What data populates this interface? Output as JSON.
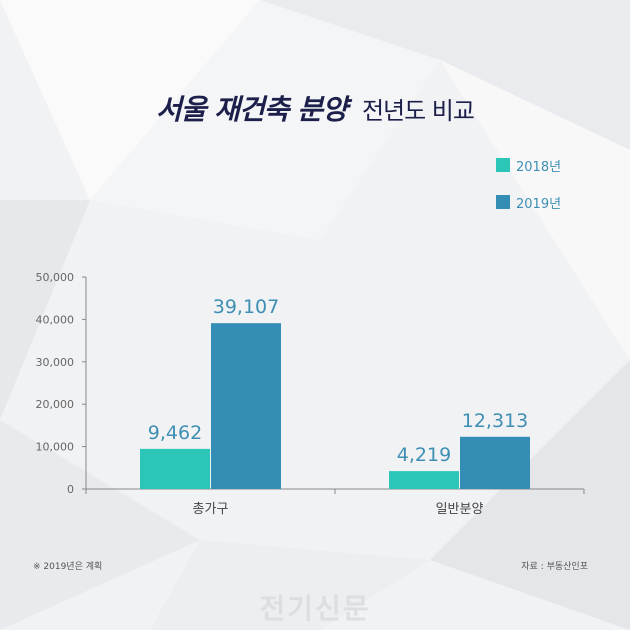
{
  "title": {
    "main": "서울 재건축 분양",
    "sub": "전년도 비교"
  },
  "legend": [
    {
      "label": "2018년",
      "color": "#2cc6b8"
    },
    {
      "label": "2019년",
      "color": "#338db4"
    }
  ],
  "chart_data": {
    "type": "bar",
    "categories": [
      "총가구",
      "일반분양"
    ],
    "series": [
      {
        "name": "2018년",
        "values": [
          9462,
          4219
        ],
        "value_labels": [
          "9,462",
          "4,219"
        ],
        "color": "#2cc6b8"
      },
      {
        "name": "2019년",
        "values": [
          39107,
          12313
        ],
        "value_labels": [
          "39,107",
          "12,313"
        ],
        "color": "#338db4"
      }
    ],
    "yticks": [
      0,
      10000,
      20000,
      30000,
      40000,
      50000
    ],
    "ytick_labels": [
      "0",
      "10,000",
      "20,000",
      "30,000",
      "40,000",
      "50,000"
    ],
    "ylim": [
      0,
      50000
    ],
    "grid": false,
    "legend_position": "top-right"
  },
  "notes": {
    "left": "※ 2019년은 계획",
    "right": "자료 : 부동산인포"
  },
  "watermark": "전기신문",
  "colors": {
    "title": "#1b1f4a",
    "value_label": "#3e8fb3",
    "axis": "#888888"
  }
}
